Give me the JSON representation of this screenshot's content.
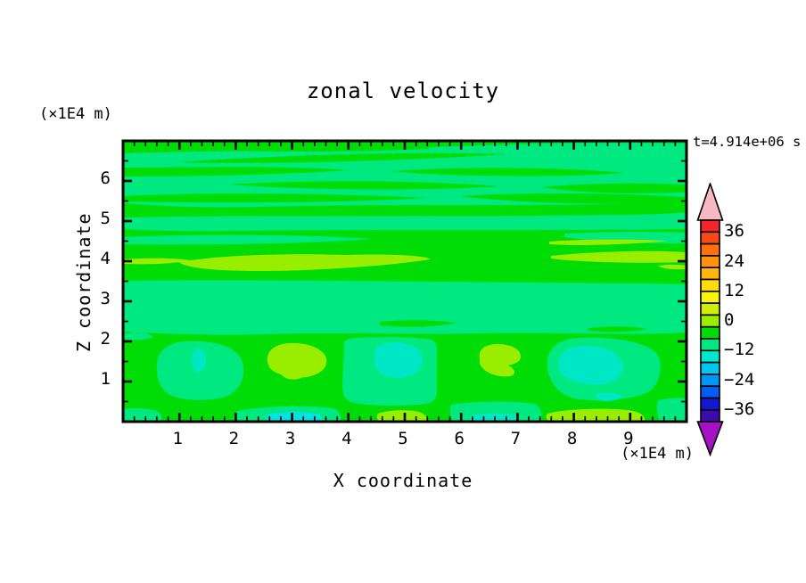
{
  "title": "zonal velocity",
  "timestamp": "t=4.914e+06 s",
  "axes": {
    "x": {
      "label": "X coordinate",
      "unit": "(×1E4 m)",
      "range": [
        0,
        10
      ],
      "major_ticks": [
        1,
        2,
        3,
        4,
        5,
        6,
        7,
        8,
        9
      ],
      "minor_step": 0.2
    },
    "z": {
      "label": "Z coordinate",
      "unit": "(×1E4 m)",
      "range": [
        0,
        7
      ],
      "major_ticks": [
        1,
        2,
        3,
        4,
        5,
        6
      ],
      "minor_step": 0.5
    }
  },
  "colorbar": {
    "labels": [
      36,
      24,
      12,
      0,
      -12,
      -24,
      -36
    ],
    "value_max": 40.8,
    "value_min": -40.8,
    "interval": 4.8,
    "segment_colors": [
      "#f2262a",
      "#f94a16",
      "#ff7010",
      "#ff9310",
      "#ffb70e",
      "#ffdb0e",
      "#f8f50c",
      "#cfef06",
      "#99ee00",
      "#00dc06",
      "#00e981",
      "#00e7cd",
      "#00c6f2",
      "#0096f8",
      "#005ef3",
      "#1317cf",
      "#3c0bae"
    ],
    "over_arrow_color": "#f8b9c4",
    "under_arrow_color": "#a711c4"
  },
  "field_colors": {
    "background_green": "#00dc06",
    "band_teal": "#00e981",
    "core_aqua": "#00e7c6",
    "spot_cyan": "#00e3e3",
    "streak_chartreuse": "#99ee00"
  },
  "chart_data": {
    "type": "heatmap",
    "title": "zonal velocity",
    "xlabel": "X coordinate",
    "ylabel": "Z coordinate",
    "x_unit": "(×1E4 m)",
    "y_unit": "(×1E4 m)",
    "xlim": [
      0,
      10
    ],
    "ylim": [
      0,
      7
    ],
    "time_annotation": "t=4.914e+06 s",
    "contour_interval": 4.8,
    "labeled_levels": [
      -36,
      -24,
      -12,
      0,
      12,
      24,
      36
    ],
    "value_range_shown": [
      -40.8,
      40.8
    ],
    "legend_position": "right colorbar with over/under arrows",
    "grid": false,
    "features": [
      {
        "region": "z 5.4 to 7.0, all x",
        "value": "streaky mix of 0 band and -2.4 to -7.2 band, streaks tilted slightly downward to the left"
      },
      {
        "region": "z 4.9 to 5.2, all x",
        "value": "-2.4 to -7.2 horizontal band"
      },
      {
        "region": "z 3.8 to 4.3",
        "value": "+2.4 to +7.2 chartreuse streaks near x 1-5.5 and x 7.5-10"
      },
      {
        "region": "z 2.1 to 3.5, all x",
        "value": "uniform -2.4 to -7.2 band"
      },
      {
        "region": "z 0 to 2.1",
        "value": "cellular row: negative cells (about -5 to -12) centered near x 1.3, 4.8, 8.3 with aqua cores; positive cells (about +5) near x 3.0 and 6.6"
      },
      {
        "region": "bottom edge z < 0.3",
        "value": "alternating spots: negative (teal/cyan) near x 0.3, 3.1, 6.5; positive (chartreuse) near x 1.2, 5.0, 8.4"
      }
    ]
  }
}
